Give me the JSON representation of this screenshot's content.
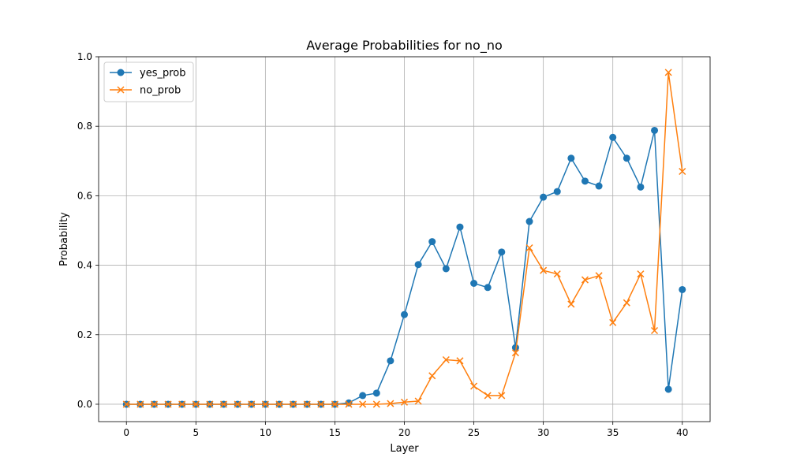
{
  "chart_data": {
    "type": "line",
    "title": "Average Probabilities for no_no",
    "xlabel": "Layer",
    "ylabel": "Probability",
    "xlim": [
      -2,
      42
    ],
    "ylim": [
      -0.05,
      1.0
    ],
    "xticks": [
      0,
      5,
      10,
      15,
      20,
      25,
      30,
      35,
      40
    ],
    "yticks": [
      0.0,
      0.2,
      0.4,
      0.6,
      0.8,
      1.0
    ],
    "ytick_labels": [
      "0.0",
      "0.2",
      "0.4",
      "0.6",
      "0.8",
      "1.0"
    ],
    "grid": true,
    "legend_position": "upper-left",
    "x": [
      0,
      1,
      2,
      3,
      4,
      5,
      6,
      7,
      8,
      9,
      10,
      11,
      12,
      13,
      14,
      15,
      16,
      17,
      18,
      19,
      20,
      21,
      22,
      23,
      24,
      25,
      26,
      27,
      28,
      29,
      30,
      31,
      32,
      33,
      34,
      35,
      36,
      37,
      38,
      39,
      40
    ],
    "series": [
      {
        "name": "yes_prob",
        "color": "#1f77b4",
        "marker": "circle",
        "values": [
          0,
          0,
          0,
          0,
          0,
          0,
          0,
          0,
          0,
          0,
          0,
          0,
          0,
          0,
          0,
          0,
          0.004,
          0.025,
          0.032,
          0.125,
          0.258,
          0.402,
          0.468,
          0.39,
          0.51,
          0.348,
          0.336,
          0.438,
          0.163,
          0.526,
          0.596,
          0.612,
          0.708,
          0.642,
          0.628,
          0.768,
          0.708,
          0.625,
          0.788,
          0.043,
          0.33
        ]
      },
      {
        "name": "no_prob",
        "color": "#ff7f0e",
        "marker": "x",
        "values": [
          0,
          0,
          0,
          0,
          0,
          0,
          0,
          0,
          0,
          0,
          0,
          0,
          0,
          0,
          0,
          0,
          0,
          0,
          0,
          0.002,
          0.006,
          0.009,
          0.082,
          0.128,
          0.125,
          0.052,
          0.025,
          0.025,
          0.148,
          0.45,
          0.385,
          0.375,
          0.288,
          0.358,
          0.37,
          0.235,
          0.292,
          0.375,
          0.212,
          0.955,
          0.67
        ]
      }
    ]
  }
}
